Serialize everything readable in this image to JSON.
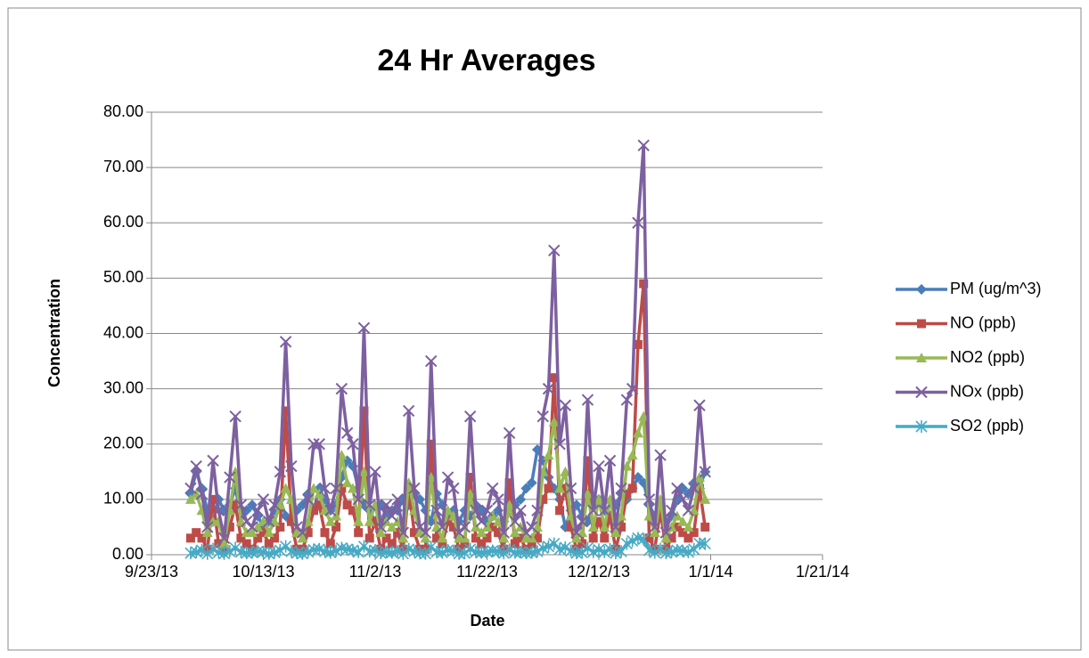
{
  "chart_data": {
    "type": "line",
    "title": "24 Hr Averages",
    "x_label": "Date",
    "y_label": "Concentration",
    "x": [
      "9/30/13",
      "10/1/13",
      "10/2/13",
      "10/3/13",
      "10/4/13",
      "10/5/13",
      "10/6/13",
      "10/7/13",
      "10/8/13",
      "10/9/13",
      "10/10/13",
      "10/11/13",
      "10/12/13",
      "10/13/13",
      "10/14/13",
      "10/15/13",
      "10/16/13",
      "10/17/13",
      "10/18/13",
      "10/19/13",
      "10/20/13",
      "10/21/13",
      "10/22/13",
      "10/23/13",
      "10/24/13",
      "10/25/13",
      "10/26/13",
      "10/27/13",
      "10/28/13",
      "10/29/13",
      "10/30/13",
      "10/31/13",
      "11/1/13",
      "11/2/13",
      "11/3/13",
      "11/4/13",
      "11/5/13",
      "11/6/13",
      "11/7/13",
      "11/8/13",
      "11/9/13",
      "11/10/13",
      "11/11/13",
      "11/12/13",
      "11/13/13",
      "11/14/13",
      "11/15/13",
      "11/16/13",
      "11/17/13",
      "11/18/13",
      "11/19/13",
      "11/20/13",
      "11/21/13",
      "11/22/13",
      "11/23/13",
      "11/24/13",
      "11/25/13",
      "11/26/13",
      "11/27/13",
      "11/28/13",
      "11/29/13",
      "11/30/13",
      "12/1/13",
      "12/2/13",
      "12/3/13",
      "12/4/13",
      "12/5/13",
      "12/6/13",
      "12/7/13",
      "12/8/13",
      "12/9/13",
      "12/10/13",
      "12/11/13",
      "12/12/13",
      "12/13/13",
      "12/14/13",
      "12/15/13",
      "12/16/13",
      "12/17/13",
      "12/18/13",
      "12/19/13",
      "12/20/13",
      "12/21/13",
      "12/22/13",
      "12/23/13",
      "12/24/13",
      "12/25/13",
      "12/26/13",
      "12/27/13",
      "12/28/13",
      "12/29/13",
      "12/30/13",
      "12/31/13"
    ],
    "xlim": [
      "9/23/13",
      "1/21/14"
    ],
    "xticks": [
      "9/23/13",
      "10/13/13",
      "11/2/13",
      "11/22/13",
      "12/12/13",
      "1/1/14",
      "1/21/14"
    ],
    "ylim": [
      0,
      80
    ],
    "yticks": [
      {
        "value": 0,
        "label": "0.00"
      },
      {
        "value": 10,
        "label": "10.00"
      },
      {
        "value": 20,
        "label": "20.00"
      },
      {
        "value": 30,
        "label": "30.00"
      },
      {
        "value": 40,
        "label": "40.00"
      },
      {
        "value": 50,
        "label": "50.00"
      },
      {
        "value": 60,
        "label": "60.00"
      },
      {
        "value": 70,
        "label": "70.00"
      },
      {
        "value": 80,
        "label": "80.00"
      }
    ],
    "grid": true,
    "legend": "right",
    "series": [
      {
        "name": "PM (ug/m^3)",
        "color": "#4a7ebb",
        "marker": "diamond",
        "values": [
          11,
          15,
          12,
          8,
          6,
          10,
          8,
          9,
          12,
          7,
          8,
          9,
          7,
          5,
          6,
          8,
          10,
          7,
          6,
          8,
          9,
          11,
          8,
          12,
          10,
          8,
          9,
          14,
          17,
          16,
          12,
          9,
          8,
          6,
          9,
          7,
          8,
          8,
          10,
          9,
          11,
          10,
          8,
          6,
          11,
          9,
          7,
          8,
          6,
          8,
          7,
          9,
          8,
          6,
          7,
          8,
          6,
          8,
          9,
          10,
          12,
          13,
          19,
          17,
          14,
          12,
          10,
          5,
          8,
          9,
          7,
          6,
          9,
          10,
          8,
          7,
          9,
          11,
          10,
          12,
          14,
          13,
          9,
          7,
          8,
          6,
          7,
          10,
          12,
          11,
          13,
          12,
          15
        ]
      },
      {
        "name": "NO (ppb)",
        "color": "#be4b48",
        "marker": "square",
        "values": [
          3,
          4,
          3,
          1,
          10,
          2,
          1,
          5,
          9,
          3,
          2,
          1,
          3,
          4,
          2,
          3,
          5,
          26,
          6,
          1,
          1,
          4,
          8,
          9,
          4,
          2,
          5,
          12,
          9,
          8,
          4,
          26,
          3,
          6,
          1,
          3,
          2,
          4,
          1,
          12,
          4,
          1,
          1,
          20,
          3,
          2,
          6,
          5,
          1,
          2,
          14,
          3,
          2,
          3,
          5,
          4,
          1,
          13,
          2,
          3,
          1,
          2,
          3,
          10,
          12,
          32,
          8,
          12,
          5,
          1,
          2,
          17,
          3,
          6,
          3,
          7,
          1,
          5,
          11,
          12,
          38,
          49,
          3,
          1,
          8,
          1,
          3,
          5,
          4,
          3,
          4,
          12,
          5
        ]
      },
      {
        "name": "NO2 (ppb)",
        "color": "#98b954",
        "marker": "triangle",
        "values": [
          10,
          11,
          8,
          4,
          6,
          6,
          2,
          8,
          15,
          6,
          4,
          4,
          5,
          6,
          4,
          6,
          9,
          12,
          10,
          4,
          3,
          6,
          12,
          11,
          8,
          6,
          7,
          18,
          13,
          12,
          6,
          15,
          6,
          9,
          4,
          6,
          5,
          6,
          3,
          13,
          8,
          4,
          3,
          14,
          5,
          3,
          8,
          7,
          3,
          3,
          11,
          5,
          4,
          5,
          7,
          6,
          3,
          9,
          4,
          5,
          3,
          3,
          5,
          15,
          18,
          24,
          12,
          15,
          7,
          3,
          4,
          11,
          5,
          10,
          5,
          10,
          4,
          7,
          16,
          18,
          22,
          25,
          7,
          4,
          10,
          3,
          5,
          7,
          6,
          5,
          8,
          14,
          10
        ]
      },
      {
        "name": "NOx (ppb)",
        "color": "#7d60a0",
        "marker": "x",
        "values": [
          12,
          16,
          11,
          5,
          17,
          8,
          3,
          14,
          25,
          9,
          6,
          5,
          8,
          10,
          6,
          9,
          15,
          38.5,
          16,
          5,
          4,
          10,
          20,
          20,
          12,
          8,
          12,
          30,
          22,
          20,
          10,
          41,
          9,
          15,
          5,
          9,
          7,
          10,
          4,
          26,
          12,
          5,
          4,
          35,
          8,
          5,
          14,
          12,
          4,
          5,
          25,
          8,
          6,
          8,
          12,
          10,
          4,
          22,
          6,
          8,
          4,
          5,
          8,
          25,
          30,
          55,
          20,
          27,
          12,
          4,
          6,
          28,
          8,
          16,
          8,
          17,
          5,
          12,
          28,
          30,
          60,
          74,
          10,
          5,
          18,
          4,
          8,
          12,
          10,
          8,
          12,
          27,
          15
        ]
      },
      {
        "name": "SO2 (ppb)",
        "color": "#46aac5",
        "marker": "star",
        "values": [
          0.3,
          0.5,
          0.8,
          0.2,
          1.0,
          0.4,
          0.2,
          0.6,
          1.2,
          0.5,
          0.3,
          0.4,
          0.6,
          0.5,
          0.2,
          0.4,
          0.8,
          1.5,
          0.6,
          0.3,
          0.2,
          0.5,
          0.9,
          1.0,
          0.6,
          0.4,
          0.7,
          1.2,
          1.0,
          0.8,
          0.5,
          1.5,
          0.6,
          0.8,
          0.3,
          0.5,
          0.4,
          0.6,
          0.2,
          1.0,
          0.6,
          0.3,
          0.2,
          1.4,
          0.5,
          0.4,
          0.8,
          0.7,
          0.2,
          0.3,
          1.0,
          0.5,
          0.4,
          0.5,
          0.7,
          0.6,
          0.3,
          0.9,
          0.4,
          0.5,
          0.3,
          0.4,
          0.6,
          1.2,
          1.5,
          2.0,
          1.0,
          1.3,
          0.7,
          0.3,
          0.4,
          1.2,
          0.5,
          0.9,
          0.5,
          1.0,
          0.3,
          0.6,
          2.0,
          2.5,
          3.0,
          2.8,
          0.8,
          0.4,
          1.0,
          0.3,
          0.5,
          0.8,
          0.7,
          0.5,
          1.0,
          2.0,
          2.0
        ]
      }
    ]
  }
}
